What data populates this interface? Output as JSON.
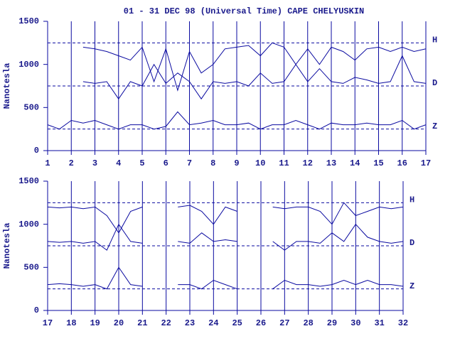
{
  "chart_data": [
    {
      "type": "line",
      "title": "01 - 31 DEC 98 (Universal Time) CAPE CHELYUSKIN",
      "y_label": "Nanotesla",
      "x": [
        1,
        1.5,
        2,
        2.5,
        3,
        3.5,
        4,
        4.5,
        5,
        5.5,
        6,
        6.5,
        7,
        7.5,
        8,
        8.5,
        9,
        9.5,
        10,
        10.5,
        11,
        11.5,
        12,
        12.5,
        13,
        13.5,
        14,
        14.5,
        15,
        15.5,
        16,
        16.5,
        17
      ],
      "xlim": [
        1,
        17
      ],
      "xticks": [
        1,
        2,
        3,
        4,
        5,
        6,
        7,
        8,
        9,
        10,
        11,
        12,
        13,
        14,
        15,
        16,
        17
      ],
      "ylim": [
        0,
        1500
      ],
      "yticks": [
        0,
        500,
        1000,
        1500
      ],
      "reference_lines": [
        1250,
        750,
        250
      ],
      "grid": true,
      "series": [
        {
          "name": "H",
          "color": "#0a0aa0",
          "values": [
            null,
            null,
            null,
            1200,
            1180,
            1150,
            1100,
            1050,
            1200,
            800,
            1180,
            700,
            1150,
            900,
            1000,
            1180,
            1200,
            1220,
            1100,
            1250,
            1200,
            1000,
            1180,
            1000,
            1200,
            1150,
            1050,
            1180,
            1200,
            1150,
            1200,
            1150,
            1180
          ]
        },
        {
          "name": "D",
          "color": "#0a0aa0",
          "values": [
            null,
            null,
            null,
            800,
            780,
            800,
            600,
            800,
            750,
            1000,
            780,
            900,
            800,
            600,
            800,
            780,
            800,
            750,
            900,
            780,
            800,
            1000,
            800,
            950,
            800,
            780,
            850,
            820,
            780,
            800,
            1100,
            800,
            780
          ]
        },
        {
          "name": "Z",
          "color": "#0a0aa0",
          "values": [
            300,
            250,
            350,
            320,
            350,
            300,
            250,
            300,
            300,
            250,
            280,
            450,
            300,
            320,
            350,
            300,
            300,
            320,
            250,
            300,
            300,
            350,
            300,
            250,
            320,
            300,
            300,
            320,
            300,
            300,
            350,
            250,
            300
          ]
        }
      ]
    },
    {
      "type": "line",
      "y_label": "Nanotesla",
      "x": [
        17,
        17.5,
        18,
        18.5,
        19,
        19.5,
        20,
        20.5,
        21,
        21.5,
        22,
        22.5,
        23,
        23.5,
        24,
        24.5,
        25,
        25.5,
        26,
        26.5,
        27,
        27.5,
        28,
        28.5,
        29,
        29.5,
        30,
        30.5,
        31,
        31.5,
        32
      ],
      "xlim": [
        17,
        32
      ],
      "xticks": [
        17,
        18,
        19,
        20,
        21,
        22,
        23,
        24,
        25,
        26,
        27,
        28,
        29,
        30,
        31,
        32
      ],
      "ylim": [
        0,
        1500
      ],
      "yticks": [
        0,
        500,
        1000,
        1500
      ],
      "reference_lines": [
        1250,
        750,
        250
      ],
      "grid": true,
      "series": [
        {
          "name": "H",
          "color": "#0a0aa0",
          "values": [
            1200,
            1190,
            1200,
            1180,
            1200,
            1100,
            900,
            1150,
            1200,
            null,
            null,
            1200,
            1220,
            1150,
            1000,
            1200,
            1150,
            null,
            null,
            1200,
            1180,
            1200,
            1200,
            1150,
            1000,
            1250,
            1100,
            1150,
            1200,
            1180,
            1200
          ]
        },
        {
          "name": "D",
          "color": "#0a0aa0",
          "values": [
            800,
            790,
            800,
            780,
            800,
            700,
            1000,
            800,
            780,
            null,
            null,
            800,
            780,
            900,
            800,
            820,
            800,
            null,
            null,
            800,
            700,
            800,
            800,
            780,
            900,
            800,
            1000,
            850,
            800,
            780,
            800
          ]
        },
        {
          "name": "Z",
          "color": "#0a0aa0",
          "values": [
            300,
            310,
            300,
            280,
            300,
            250,
            500,
            300,
            280,
            null,
            null,
            300,
            300,
            250,
            350,
            300,
            250,
            null,
            null,
            250,
            350,
            300,
            300,
            280,
            300,
            350,
            300,
            350,
            300,
            300,
            280
          ]
        }
      ]
    }
  ]
}
